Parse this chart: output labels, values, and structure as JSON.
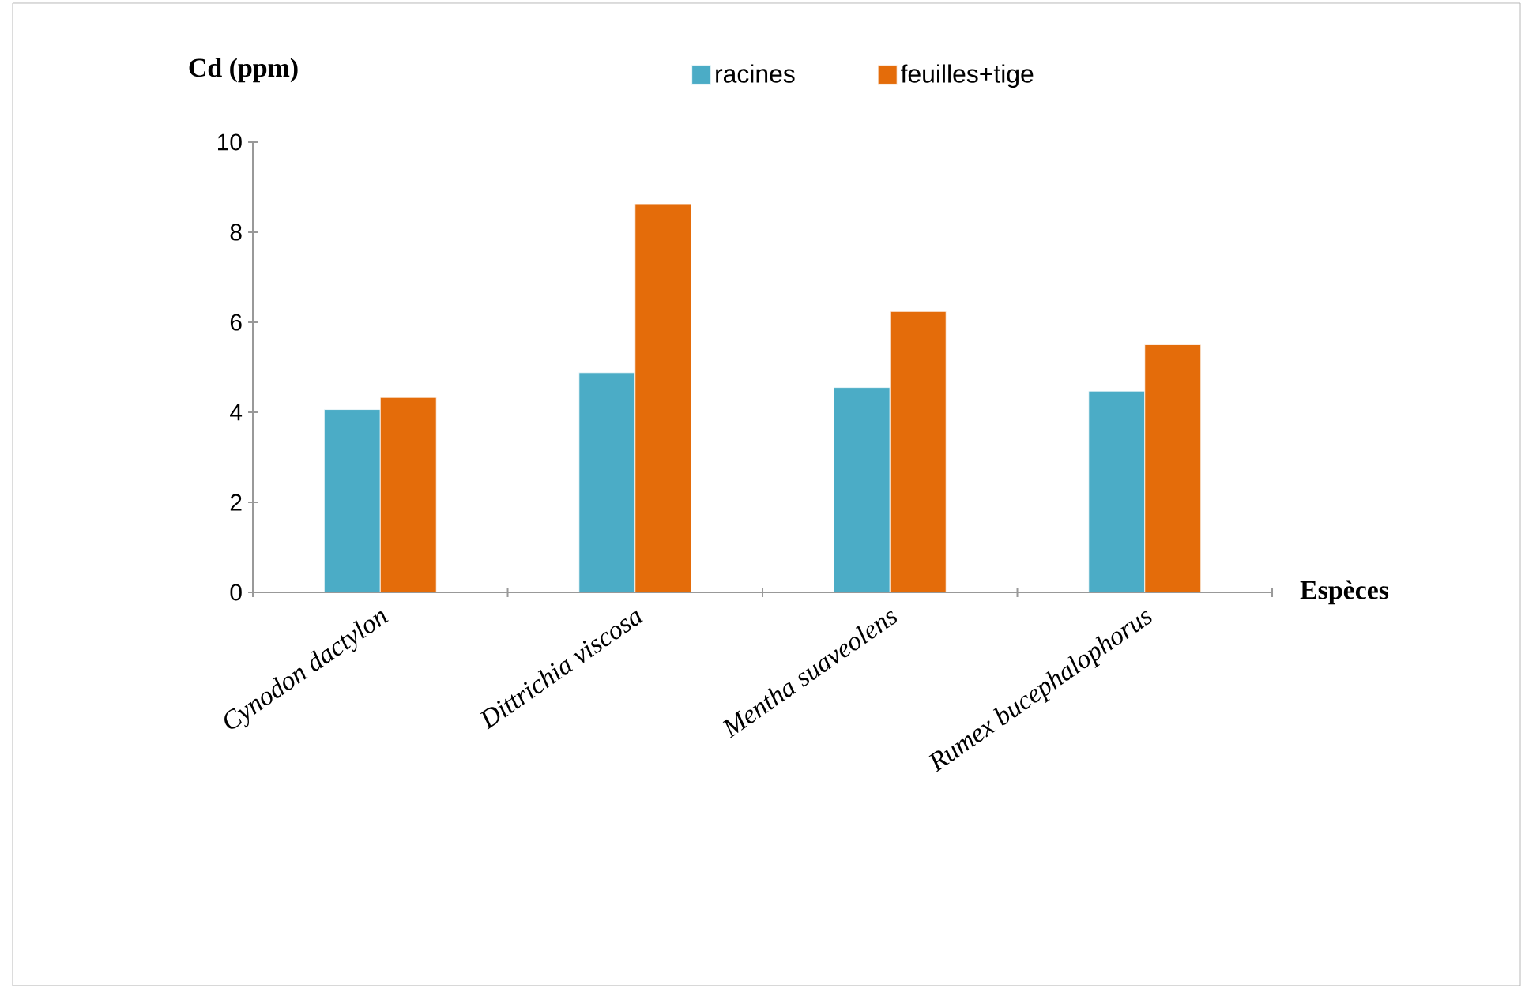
{
  "chart_data": {
    "type": "bar",
    "ylabel": "Cd (ppm)",
    "xlabel": "Espèces",
    "categories": [
      "Cynodon dactylon",
      "Dittrichia viscosa",
      "Mentha suaveolens",
      "Rumex bucephalophorus"
    ],
    "series": [
      {
        "name": "racines",
        "color": "#4bacc6",
        "values": [
          4.06,
          4.88,
          4.55,
          4.47
        ]
      },
      {
        "name": "feuilles+tige",
        "color": "#e46c0a",
        "values": [
          4.33,
          8.63,
          6.24,
          5.5
        ]
      }
    ],
    "ylim": [
      0,
      10
    ],
    "yticks": [
      0,
      2,
      4,
      6,
      8,
      10
    ],
    "grid": false,
    "legend": "top"
  }
}
